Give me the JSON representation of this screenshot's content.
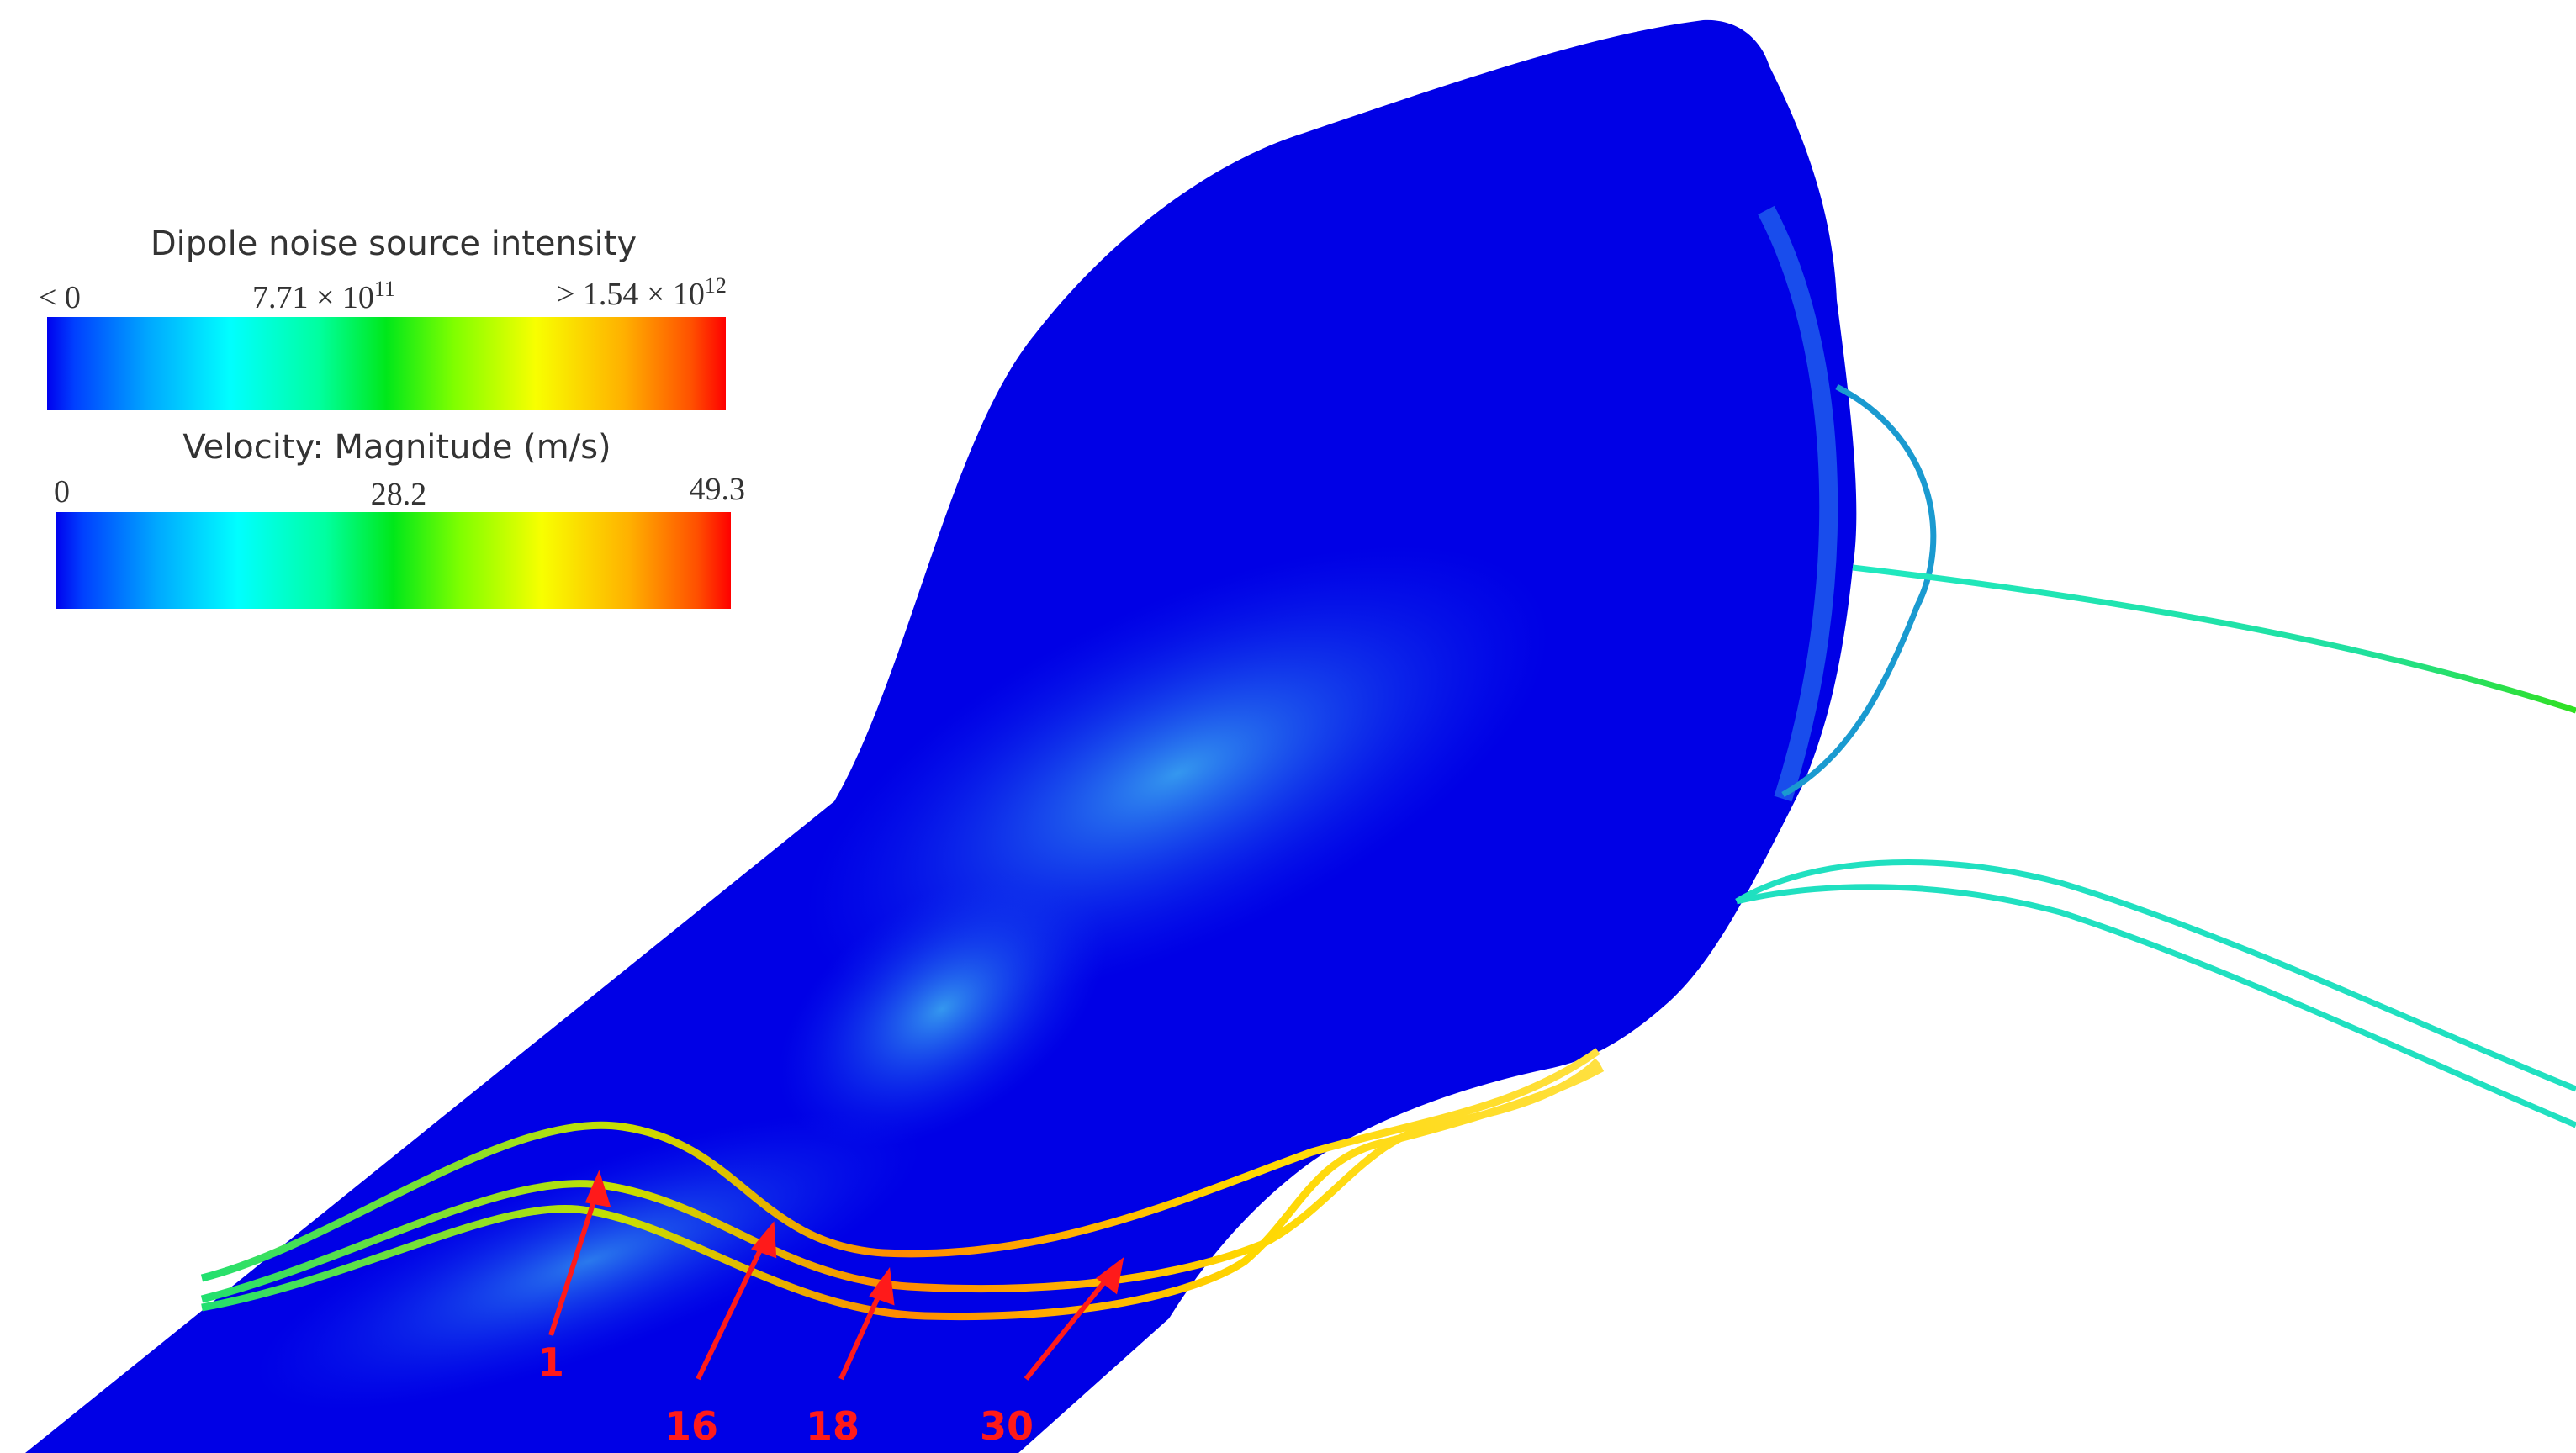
{
  "legends": [
    {
      "title": "Dipole noise source intensity",
      "min_label": "< 0",
      "mid_label": "7.71 × 10",
      "mid_exp": "11",
      "max_label": "> 1.54 × 10",
      "max_exp": "12",
      "colormap": "rainbow"
    },
    {
      "title": "Velocity: Magnitude (m/s)",
      "min_label": "0",
      "mid_label": "28.2",
      "max_label": "49.3",
      "colormap": "rainbow"
    }
  ],
  "colors": {
    "surface": "#0000e6",
    "surface_highlight": "#1a6cf0",
    "annotation": "#ff1a1a",
    "text": "#333333"
  },
  "callouts": [
    "1",
    "16",
    "18",
    "30"
  ]
}
